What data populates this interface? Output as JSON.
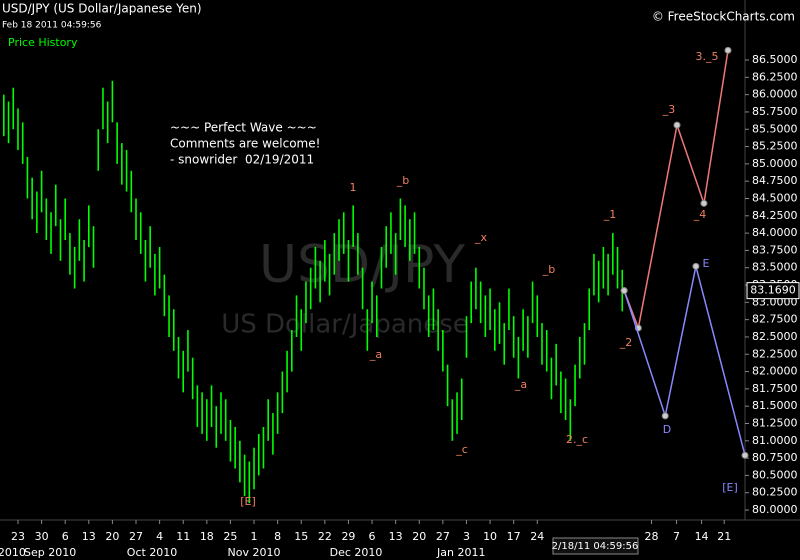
{
  "chart_data": {
    "type": "rangebar",
    "title": "USD/JPY (US Dollar/Japanese Yen)",
    "subtitle": "Feb 18 2011 04:59:56",
    "source": "© FreeStockCharts.com",
    "watermark": [
      "USD/JPY",
      "US Dollar/Japanese"
    ],
    "note": [
      "~~~ Perfect Wave ~~~",
      "Comments are welcome!",
      "- snowrider  02/19/2011"
    ],
    "cursor_time": "2/18/11 04:59:56",
    "last_price": {
      "value": 83.169,
      "label": "83.1690"
    },
    "annotations": [
      "1",
      "_b",
      "_a",
      "_x",
      "_b",
      "_a",
      "_c",
      "2._c",
      "_1",
      "_2",
      "_3",
      "_4",
      "3._5",
      "[E]",
      "D",
      "E",
      "[E]"
    ],
    "x": [
      -3,
      -2,
      -1,
      0,
      1,
      2,
      3,
      4,
      5,
      6,
      7,
      8,
      9,
      10,
      11,
      12,
      13,
      14,
      15,
      16,
      17,
      18,
      19,
      20,
      21,
      22,
      23,
      24,
      25,
      26,
      27,
      28,
      29,
      30,
      31,
      32,
      33,
      34,
      35,
      36,
      37,
      38,
      39,
      40,
      41,
      42,
      43,
      44,
      45,
      46,
      47,
      48,
      49,
      50,
      51,
      52,
      53,
      54,
      55,
      56,
      57,
      58,
      59,
      60,
      61,
      62,
      63,
      64,
      65,
      66,
      67,
      68,
      69,
      70,
      71,
      72,
      73,
      74,
      75,
      76,
      77,
      78,
      79,
      80,
      81,
      82,
      83,
      84,
      85,
      86,
      87,
      88,
      89,
      90,
      91,
      92,
      93,
      94,
      95,
      96,
      97,
      98,
      99,
      100,
      101,
      102,
      103,
      104,
      105,
      106,
      107,
      108,
      109,
      110,
      111,
      112,
      113,
      114,
      115,
      116,
      117,
      118,
      119,
      120,
      121,
      122,
      123,
      124,
      125,
      126,
      127,
      128
    ],
    "series": [
      {
        "name": "Price History",
        "color": "#00ff00",
        "high": [
          86.0,
          85.9,
          86.1,
          85.8,
          85.6,
          85.1,
          84.8,
          84.6,
          84.9,
          84.5,
          84.3,
          84.7,
          84.2,
          84.5,
          84.0,
          83.8,
          84.2,
          83.9,
          84.4,
          84.1,
          85.5,
          86.1,
          85.9,
          86.2,
          85.6,
          85.3,
          85.2,
          84.9,
          84.5,
          84.3,
          83.9,
          84.1,
          83.7,
          83.8,
          83.4,
          83.1,
          82.9,
          82.5,
          82.3,
          82.6,
          82.2,
          81.8,
          81.7,
          81.6,
          81.8,
          81.5,
          81.7,
          81.6,
          81.3,
          81.2,
          81.0,
          80.8,
          80.7,
          80.9,
          81.1,
          81.2,
          81.6,
          81.4,
          81.7,
          82.0,
          82.3,
          82.6,
          83.1,
          82.9,
          83.3,
          83.5,
          83.8,
          83.6,
          83.9,
          83.7,
          84.0,
          84.2,
          84.3,
          83.9,
          84.4,
          84.0,
          83.5,
          82.9,
          83.3,
          83.1,
          83.8,
          84.1,
          84.3,
          84.0,
          84.5,
          84.4,
          84.2,
          84.3,
          83.8,
          83.5,
          83.1,
          83.2,
          82.9,
          82.6,
          82.1,
          81.6,
          81.7,
          81.9,
          82.8,
          83.3,
          83.5,
          83.3,
          83.1,
          83.2,
          82.9,
          83.0,
          82.7,
          83.2,
          82.8,
          82.5,
          82.9,
          82.8,
          83.3,
          83.1,
          82.7,
          82.6,
          82.2,
          82.4,
          82.0,
          81.9,
          81.6,
          82.1,
          82.5,
          82.7,
          83.2,
          83.7,
          83.6,
          83.8,
          83.7,
          84.0,
          83.8,
          83.47
        ],
        "low": [
          85.4,
          85.3,
          85.5,
          85.2,
          85.0,
          84.5,
          84.2,
          84.0,
          84.3,
          83.9,
          83.7,
          84.1,
          83.6,
          83.9,
          83.4,
          83.2,
          83.6,
          83.3,
          83.8,
          83.5,
          84.9,
          85.5,
          85.3,
          85.6,
          85.0,
          84.7,
          84.6,
          84.3,
          83.9,
          83.7,
          83.3,
          83.5,
          83.1,
          83.2,
          82.8,
          82.5,
          82.3,
          81.9,
          81.7,
          82.0,
          81.6,
          81.2,
          81.1,
          81.0,
          81.2,
          80.9,
          81.1,
          81.0,
          80.7,
          80.6,
          80.4,
          80.2,
          80.1,
          80.3,
          80.5,
          80.6,
          81.0,
          80.8,
          81.1,
          81.4,
          81.7,
          82.0,
          82.5,
          82.3,
          82.7,
          82.9,
          83.2,
          83.0,
          83.3,
          83.1,
          83.4,
          83.6,
          83.7,
          83.3,
          83.8,
          83.4,
          82.9,
          82.3,
          82.7,
          82.5,
          83.2,
          83.5,
          83.7,
          83.4,
          83.9,
          83.8,
          83.6,
          83.7,
          83.2,
          82.9,
          82.5,
          82.6,
          82.3,
          82.0,
          81.5,
          81.0,
          81.1,
          81.3,
          82.2,
          82.7,
          82.9,
          82.7,
          82.5,
          82.6,
          82.3,
          82.4,
          82.1,
          82.6,
          82.2,
          81.9,
          82.3,
          82.2,
          82.7,
          82.5,
          82.1,
          82.0,
          81.6,
          81.8,
          81.4,
          81.3,
          81.0,
          81.5,
          81.9,
          82.1,
          82.6,
          83.1,
          83.0,
          83.2,
          83.1,
          83.4,
          83.2,
          82.87
        ]
      }
    ],
    "projections": [
      {
        "color": "#f07878",
        "x": [
          128.4,
          131.4,
          139.6,
          145.3,
          150.4
        ],
        "values": [
          83.169,
          82.63,
          85.56,
          84.43,
          86.64
        ]
      },
      {
        "color": "#8888ff",
        "x": [
          128.4,
          137.1,
          143.6,
          154.0
        ],
        "values": [
          83.169,
          81.36,
          83.52,
          80.79
        ]
      }
    ],
    "xlim": [
      -3.81,
      154
    ],
    "ylim": [
      79.856,
      87.367
    ],
    "yticks": [
      {
        "value": 86.5,
        "label": "86.5000"
      },
      {
        "value": 86.25,
        "label": "86.2500"
      },
      {
        "value": 86,
        "label": "86.0000"
      },
      {
        "value": 85.75,
        "label": "85.7500"
      },
      {
        "value": 85.5,
        "label": "85.5000"
      },
      {
        "value": 85.25,
        "label": "85.2500"
      },
      {
        "value": 85,
        "label": "85.0000"
      },
      {
        "value": 84.75,
        "label": "84.7500"
      },
      {
        "value": 84.5,
        "label": "84.5000"
      },
      {
        "value": 84.25,
        "label": "84.2500"
      },
      {
        "value": 84,
        "label": "84.0000"
      },
      {
        "value": 83.75,
        "label": "83.7500"
      },
      {
        "value": 83.5,
        "label": "83.5000"
      },
      {
        "value": 83.25,
        "label": "83.2500"
      },
      {
        "value": 83,
        "label": "83.0000"
      },
      {
        "value": 82.75,
        "label": "82.7500"
      },
      {
        "value": 82.5,
        "label": "82.5000"
      },
      {
        "value": 82.25,
        "label": "82.2500"
      },
      {
        "value": 82,
        "label": "82.0000"
      },
      {
        "value": 81.75,
        "label": "81.7500"
      },
      {
        "value": 81.5,
        "label": "81.5000"
      },
      {
        "value": 81.25,
        "label": "81.2500"
      },
      {
        "value": 81,
        "label": "81.0000"
      },
      {
        "value": 80.75,
        "label": "80.7500"
      },
      {
        "value": 80.5,
        "label": "80.5000"
      },
      {
        "value": 80.25,
        "label": "80.2500"
      },
      {
        "value": 80,
        "label": "80.0000"
      }
    ],
    "xticks": [
      {
        "value": 0,
        "label": "23"
      },
      {
        "value": 5,
        "label": "30"
      },
      {
        "value": 10,
        "label": "6"
      },
      {
        "value": 15,
        "label": "13"
      },
      {
        "value": 20,
        "label": "20"
      },
      {
        "value": 25,
        "label": "27"
      },
      {
        "value": 30,
        "label": "4"
      },
      {
        "value": 35,
        "label": "11"
      },
      {
        "value": 40,
        "label": "18"
      },
      {
        "value": 45,
        "label": "25"
      },
      {
        "value": 50,
        "label": "1"
      },
      {
        "value": 55,
        "label": "8"
      },
      {
        "value": 60,
        "label": "15"
      },
      {
        "value": 65,
        "label": "22"
      },
      {
        "value": 70,
        "label": "29"
      },
      {
        "value": 75,
        "label": "6"
      },
      {
        "value": 80,
        "label": "13"
      },
      {
        "value": 85,
        "label": "20"
      },
      {
        "value": 90,
        "label": "27"
      },
      {
        "value": 95,
        "label": "3"
      },
      {
        "value": 100,
        "label": "10"
      },
      {
        "value": 105,
        "label": "17"
      },
      {
        "value": 110,
        "label": "24"
      },
      {
        "value": 134.2,
        "label": "28"
      },
      {
        "value": 139.5,
        "label": "7"
      },
      {
        "value": 144.8,
        "label": "14"
      },
      {
        "value": 149.6,
        "label": "21"
      }
    ],
    "month_labels": [
      {
        "value": -1.3,
        "label": "2010"
      },
      {
        "value": 6.8,
        "label": "Sep 2010"
      },
      {
        "value": 28.4,
        "label": "Oct 2010"
      },
      {
        "value": 50,
        "label": "Nov 2010"
      },
      {
        "value": 71.6,
        "label": "Dec 2010"
      },
      {
        "value": 93.9,
        "label": "Jan 2011"
      }
    ]
  }
}
